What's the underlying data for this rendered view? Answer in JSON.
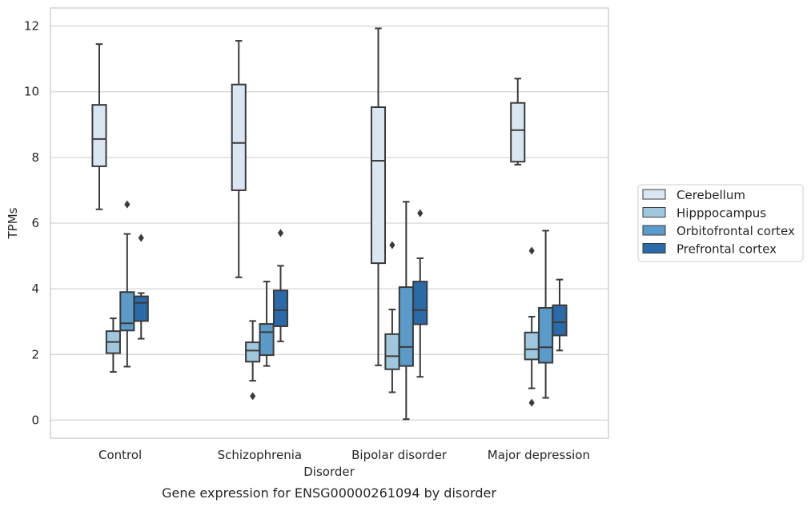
{
  "caption": "Gene expression for ENSG00000261094 by disorder",
  "chart_data": {
    "type": "boxplot",
    "xlabel": "Disorder",
    "ylabel": "TPMs",
    "ylim": [
      -0.55,
      12.55
    ],
    "yticks": [
      0,
      2,
      4,
      6,
      8,
      10,
      12
    ],
    "grid": "horizontal",
    "legend_position": "right",
    "categories": [
      "Control",
      "Schizophrenia",
      "Bipolar disorder",
      "Major depression"
    ],
    "series": [
      {
        "name": "Cerebellum",
        "color": "#dbe6f3",
        "boxes": [
          {
            "whisker_low": 6.42,
            "q1": 7.73,
            "median": 8.56,
            "q3": 9.6,
            "whisker_high": 11.45,
            "outliers": []
          },
          {
            "whisker_low": 4.35,
            "q1": 7.0,
            "median": 8.44,
            "q3": 10.22,
            "whisker_high": 11.55,
            "outliers": []
          },
          {
            "whisker_low": 1.67,
            "q1": 4.78,
            "median": 7.9,
            "q3": 9.53,
            "whisker_high": 11.93,
            "outliers": []
          },
          {
            "whisker_low": 7.78,
            "q1": 7.87,
            "median": 8.83,
            "q3": 9.66,
            "whisker_high": 10.4,
            "outliers": []
          }
        ]
      },
      {
        "name": "Hipppocampus",
        "color": "#9fc7de",
        "boxes": [
          {
            "whisker_low": 1.47,
            "q1": 2.04,
            "median": 2.38,
            "q3": 2.71,
            "whisker_high": 3.1,
            "outliers": []
          },
          {
            "whisker_low": 1.2,
            "q1": 1.78,
            "median": 2.12,
            "q3": 2.37,
            "whisker_high": 3.02,
            "outliers": [
              0.73
            ]
          },
          {
            "whisker_low": 0.85,
            "q1": 1.55,
            "median": 1.95,
            "q3": 2.62,
            "whisker_high": 3.37,
            "outliers": [
              5.33
            ]
          },
          {
            "whisker_low": 0.97,
            "q1": 1.85,
            "median": 2.16,
            "q3": 2.67,
            "whisker_high": 3.15,
            "outliers": [
              5.16,
              0.53
            ]
          }
        ]
      },
      {
        "name": "Orbitofrontal cortex",
        "color": "#5b9bc9",
        "boxes": [
          {
            "whisker_low": 1.63,
            "q1": 2.73,
            "median": 2.95,
            "q3": 3.9,
            "whisker_high": 5.67,
            "outliers": [
              6.57
            ]
          },
          {
            "whisker_low": 1.65,
            "q1": 1.98,
            "median": 2.68,
            "q3": 2.93,
            "whisker_high": 4.22,
            "outliers": []
          },
          {
            "whisker_low": 0.03,
            "q1": 1.65,
            "median": 2.23,
            "q3": 4.05,
            "whisker_high": 6.65,
            "outliers": []
          },
          {
            "whisker_low": 0.68,
            "q1": 1.75,
            "median": 2.22,
            "q3": 3.42,
            "whisker_high": 5.77,
            "outliers": []
          }
        ]
      },
      {
        "name": "Prefrontal cortex",
        "color": "#2b6aa8",
        "boxes": [
          {
            "whisker_low": 2.48,
            "q1": 3.02,
            "median": 3.57,
            "q3": 3.77,
            "whisker_high": 3.87,
            "outliers": [
              5.55
            ]
          },
          {
            "whisker_low": 2.4,
            "q1": 2.86,
            "median": 3.35,
            "q3": 3.95,
            "whisker_high": 4.7,
            "outliers": [
              5.7
            ]
          },
          {
            "whisker_low": 1.32,
            "q1": 2.92,
            "median": 3.35,
            "q3": 4.22,
            "whisker_high": 4.93,
            "outliers": [
              6.3
            ]
          },
          {
            "whisker_low": 2.12,
            "q1": 2.58,
            "median": 2.98,
            "q3": 3.5,
            "whisker_high": 4.28,
            "outliers": []
          }
        ]
      }
    ]
  }
}
